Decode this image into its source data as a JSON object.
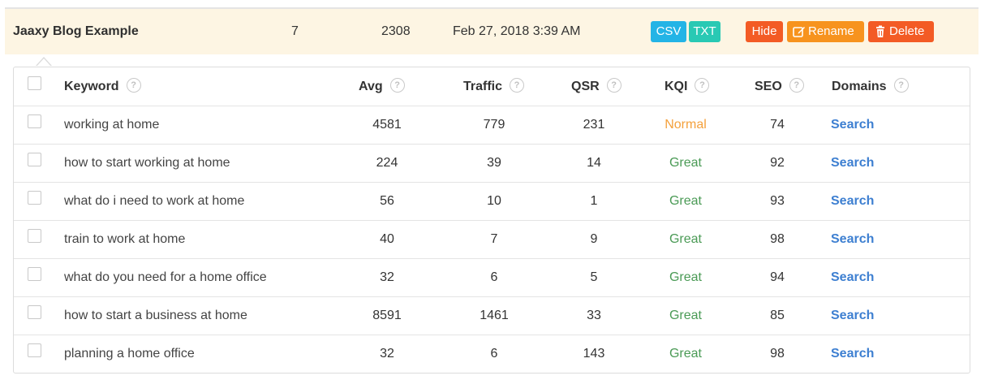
{
  "list": {
    "name": "Jaaxy Blog Example",
    "keyword_count": "7",
    "traffic_total": "2308",
    "date": "Feb 27, 2018 3:39 AM",
    "buttons": {
      "csv": "CSV",
      "txt": "TXT",
      "hide": "Hide",
      "rename": "Rename",
      "delete": "Delete"
    }
  },
  "table": {
    "headers": {
      "keyword": "Keyword",
      "avg": "Avg",
      "traffic": "Traffic",
      "qsr": "QSR",
      "kqi": "KQI",
      "seo": "SEO",
      "domains": "Domains",
      "help": "?"
    },
    "rows": [
      {
        "keyword": "working at home",
        "avg": "4581",
        "traffic": "779",
        "qsr": "231",
        "kqi": "Normal",
        "seo": "74",
        "domains": "Search"
      },
      {
        "keyword": "how to start working at home",
        "avg": "224",
        "traffic": "39",
        "qsr": "14",
        "kqi": "Great",
        "seo": "92",
        "domains": "Search"
      },
      {
        "keyword": "what do i need to work at home",
        "avg": "56",
        "traffic": "10",
        "qsr": "1",
        "kqi": "Great",
        "seo": "93",
        "domains": "Search"
      },
      {
        "keyword": "train to work at home",
        "avg": "40",
        "traffic": "7",
        "qsr": "9",
        "kqi": "Great",
        "seo": "98",
        "domains": "Search"
      },
      {
        "keyword": "what do you need for a home office",
        "avg": "32",
        "traffic": "6",
        "qsr": "5",
        "kqi": "Great",
        "seo": "94",
        "domains": "Search"
      },
      {
        "keyword": "how to start a business at home",
        "avg": "8591",
        "traffic": "1461",
        "qsr": "33",
        "kqi": "Great",
        "seo": "85",
        "domains": "Search"
      },
      {
        "keyword": "planning a home office",
        "avg": "32",
        "traffic": "6",
        "qsr": "143",
        "kqi": "Great",
        "seo": "98",
        "domains": "Search"
      }
    ]
  },
  "colors": {
    "header_bg": "#fdf5e3",
    "csv": "#23b4e6",
    "txt": "#29c9b4",
    "hide": "#f35b25",
    "rename": "#f7931e",
    "delete": "#f35b25",
    "kqi_normal": "#f4a13c",
    "kqi_great": "#4a9a55",
    "link": "#3d7fd1"
  },
  "icons": {
    "rename": "edit-icon",
    "delete": "trash-icon",
    "help": "question-circle-icon",
    "select": "checkbox-icon"
  }
}
